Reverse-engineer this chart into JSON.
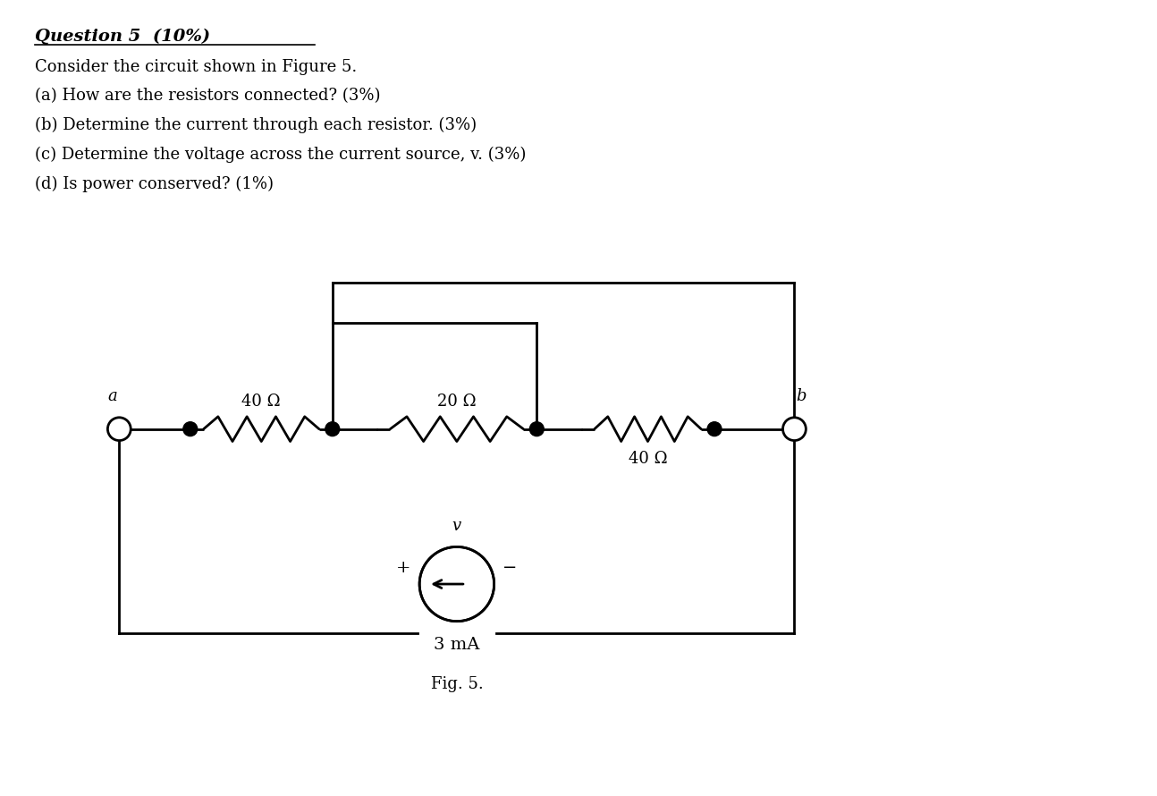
{
  "title_line1": "Question 5  (10%)",
  "body_lines": [
    "Consider the circuit shown in Figure 5.",
    "(a) How are the resistors connected? (3%)",
    "(b) Determine the current through each resistor. (3%)",
    "(c) Determine the voltage across the current source, v. (3%)",
    "(d) Is power conserved? (1%)"
  ],
  "fig_label": "Fig. 5.",
  "resistor_labels": [
    "40 Ω",
    "20 Ω",
    "40 Ω"
  ],
  "current_label": "3 mA",
  "node_a": "a",
  "node_b": "b",
  "plus_label": "+",
  "minus_label": "−",
  "v_label": "v",
  "background_color": "#ffffff",
  "line_color": "#000000",
  "text_color": "#000000"
}
